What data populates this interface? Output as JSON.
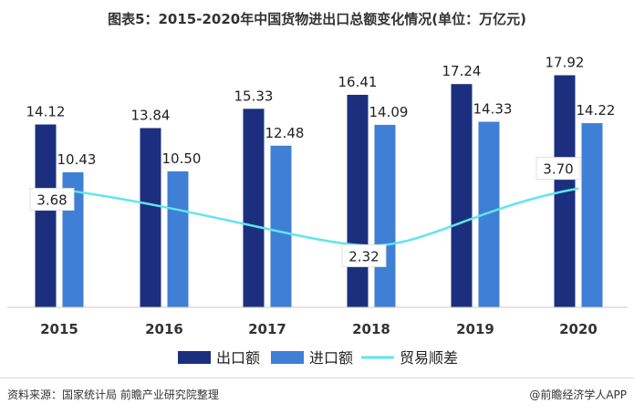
{
  "chart_data": {
    "type": "bar",
    "title": "图表5：2015-2020年中国货物进出口总额变化情况(单位：万亿元)",
    "categories": [
      "2015",
      "2016",
      "2017",
      "2018",
      "2019",
      "2020"
    ],
    "series": [
      {
        "name": "出口额",
        "kind": "bar",
        "color": "#1c2f7e",
        "values": [
          14.12,
          13.84,
          15.33,
          16.41,
          17.24,
          17.92
        ]
      },
      {
        "name": "进口额",
        "kind": "bar",
        "color": "#3f7fd6",
        "values": [
          10.43,
          10.5,
          12.48,
          14.09,
          14.33,
          14.22
        ]
      },
      {
        "name": "贸易顺差",
        "kind": "line",
        "color": "#5ee6ee",
        "values": [
          3.68,
          null,
          null,
          2.32,
          null,
          3.7
        ]
      }
    ],
    "ylim": [
      0,
      20
    ],
    "grid": false,
    "legend_position": "bottom"
  },
  "source_text": "资料来源：国家统计局 前瞻产业研究院整理",
  "credit_text": "@前瞻经济学人APP"
}
